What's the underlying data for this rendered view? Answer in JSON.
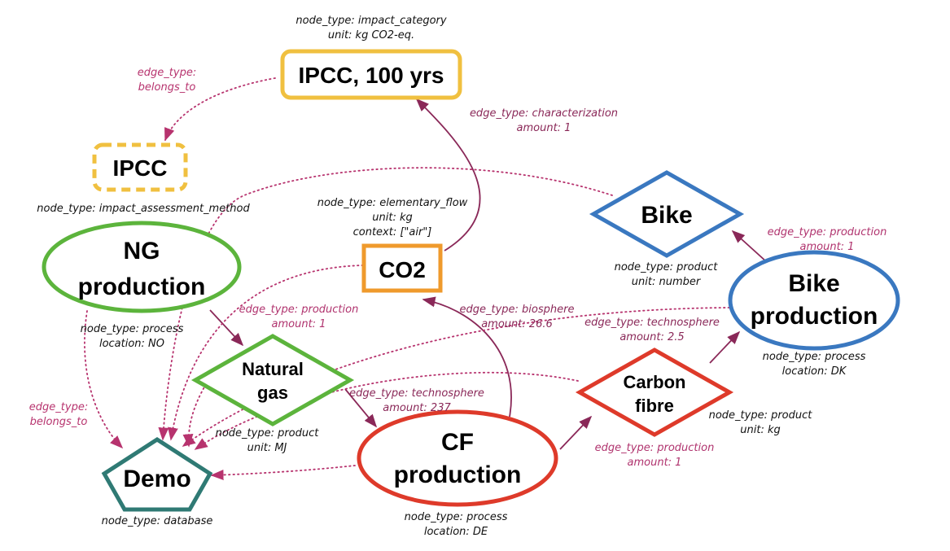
{
  "colors": {
    "impact": "#f0c040",
    "elementary": "#ef9a2c",
    "product_blue": "#3a78c0",
    "process_green": "#5cb43c",
    "process_red": "#de3a2a",
    "database": "#2f7a74",
    "edge_solid": "#8a2858",
    "edge_dotted": "#b7336e",
    "label_production": "#b0336e",
    "label_other": "#8a2858"
  },
  "nodes": {
    "ipcc100": {
      "label": "IPCC, 100 yrs",
      "meta": [
        "node_type: impact_category",
        "unit: kg CO2-eq."
      ]
    },
    "ipcc": {
      "label": "IPCC",
      "meta": [
        "node_type: impact_assessment_method"
      ]
    },
    "co2": {
      "label": "CO2",
      "meta": [
        "node_type: elementary_flow",
        "unit: kg",
        "context: [\"air\"]"
      ]
    },
    "bike": {
      "label": "Bike",
      "meta": [
        "node_type: product",
        "unit: number"
      ]
    },
    "ng_production": {
      "label": [
        "NG",
        "production"
      ],
      "meta": [
        "node_type: process",
        "location: NO"
      ]
    },
    "bike_production": {
      "label": [
        "Bike",
        "production"
      ],
      "meta": [
        "node_type: process",
        "location: DK"
      ]
    },
    "natural_gas": {
      "label": [
        "Natural",
        "gas"
      ],
      "meta": [
        "node_type: product",
        "unit: MJ"
      ]
    },
    "carbon_fibre": {
      "label": [
        "Carbon",
        "fibre"
      ],
      "meta": [
        "node_type: product",
        "unit: kg"
      ]
    },
    "cf_production": {
      "label": [
        "CF",
        "production"
      ],
      "meta": [
        "node_type: process",
        "location: DE"
      ]
    },
    "demo": {
      "label": "Demo",
      "meta": [
        "node_type: database"
      ]
    }
  },
  "edges": {
    "ipcc100_ipcc": [
      "edge_type:",
      "belongs_to"
    ],
    "co2_ipcc100": [
      "edge_type: characterization",
      "amount: 1"
    ],
    "bikeprod_bike": [
      "edge_type: production",
      "amount: 1"
    ],
    "ngprod_natgas": [
      "edge_type: production",
      "amount: 1"
    ],
    "cfprod_co2": [
      "edge_type: biosphere",
      "amount: 26.6"
    ],
    "cf_bikeprod": [
      "edge_type: technosphere",
      "amount: 2.5"
    ],
    "natgas_cfprod": [
      "edge_type: technosphere",
      "amount: 237"
    ],
    "cfprod_cf": [
      "edge_type: production",
      "amount: 1"
    ],
    "ngprod_demo": [
      "edge_type:",
      "belongs_to"
    ]
  }
}
